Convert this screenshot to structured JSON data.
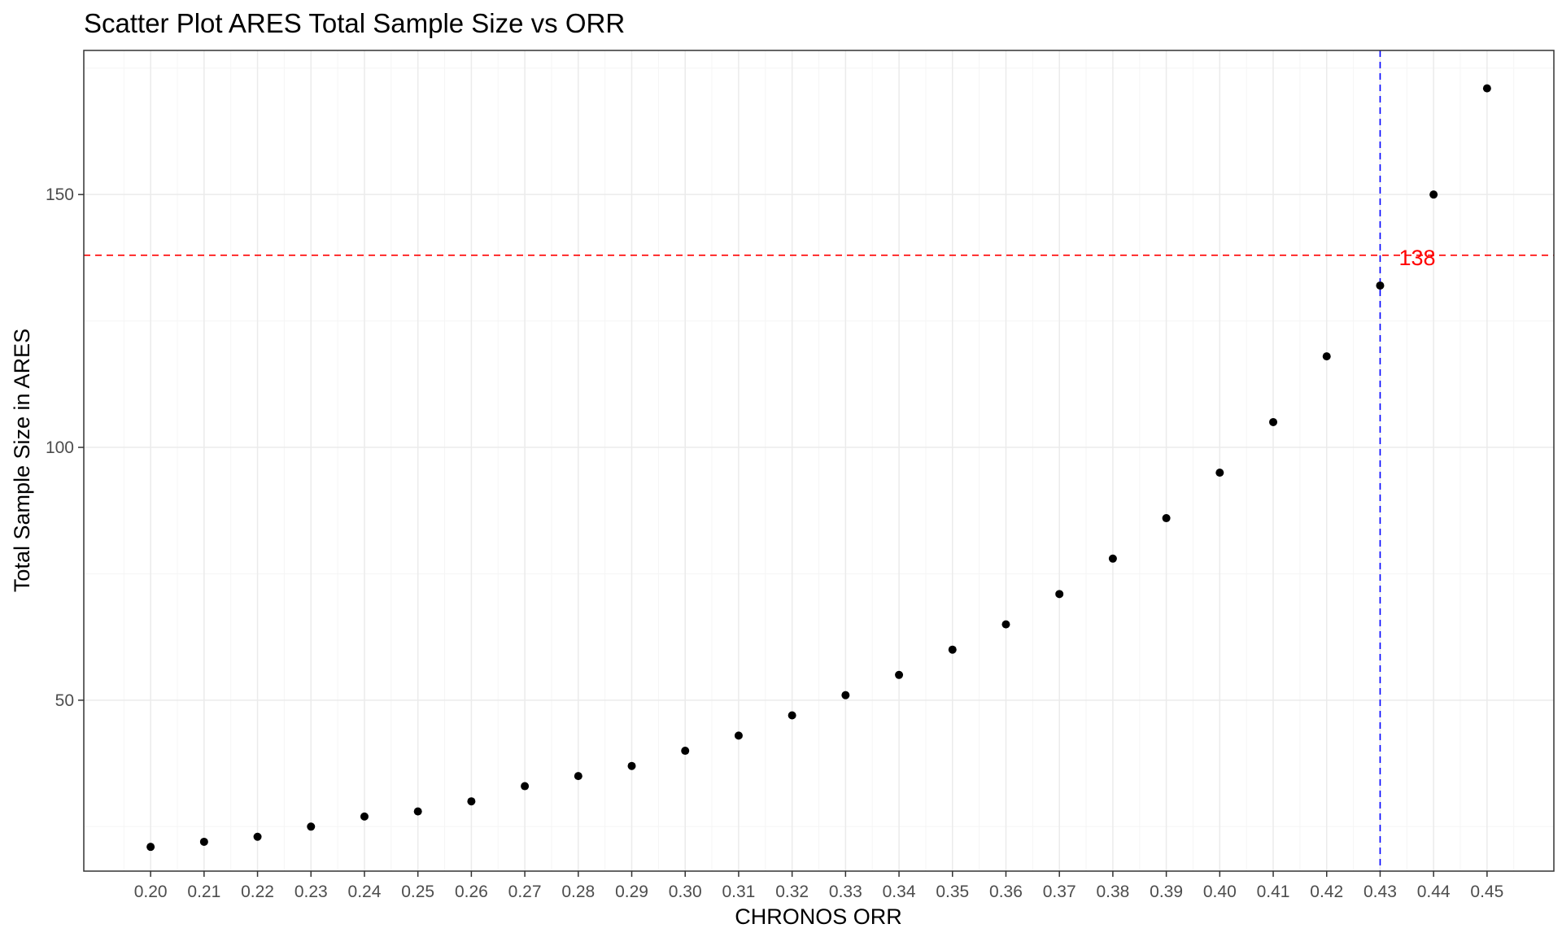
{
  "chart_data": {
    "type": "scatter",
    "title": "Scatter Plot ARES Total Sample Size vs ORR",
    "xlabel": "CHRONOS ORR",
    "ylabel": "Total Sample Size in ARES",
    "x_ticks": [
      "0.20",
      "0.21",
      "0.22",
      "0.23",
      "0.24",
      "0.25",
      "0.26",
      "0.27",
      "0.28",
      "0.29",
      "0.30",
      "0.31",
      "0.32",
      "0.33",
      "0.34",
      "0.35",
      "0.36",
      "0.37",
      "0.38",
      "0.39",
      "0.40",
      "0.41",
      "0.42",
      "0.43",
      "0.44",
      "0.45"
    ],
    "y_ticks": [
      50,
      100,
      150
    ],
    "xlim": [
      0.1875,
      0.4625
    ],
    "ylim": [
      16.2,
      178.5
    ],
    "grid": true,
    "points": [
      {
        "x": 0.2,
        "y": 21
      },
      {
        "x": 0.21,
        "y": 22
      },
      {
        "x": 0.22,
        "y": 23
      },
      {
        "x": 0.23,
        "y": 25
      },
      {
        "x": 0.24,
        "y": 27
      },
      {
        "x": 0.25,
        "y": 28
      },
      {
        "x": 0.26,
        "y": 30
      },
      {
        "x": 0.27,
        "y": 33
      },
      {
        "x": 0.28,
        "y": 35
      },
      {
        "x": 0.29,
        "y": 37
      },
      {
        "x": 0.3,
        "y": 40
      },
      {
        "x": 0.31,
        "y": 43
      },
      {
        "x": 0.32,
        "y": 47
      },
      {
        "x": 0.33,
        "y": 51
      },
      {
        "x": 0.34,
        "y": 55
      },
      {
        "x": 0.35,
        "y": 60
      },
      {
        "x": 0.36,
        "y": 65
      },
      {
        "x": 0.37,
        "y": 71
      },
      {
        "x": 0.38,
        "y": 78
      },
      {
        "x": 0.39,
        "y": 86
      },
      {
        "x": 0.4,
        "y": 95
      },
      {
        "x": 0.41,
        "y": 105
      },
      {
        "x": 0.42,
        "y": 118
      },
      {
        "x": 0.43,
        "y": 132
      },
      {
        "x": 0.44,
        "y": 150
      },
      {
        "x": 0.45,
        "y": 171
      }
    ],
    "hline": {
      "y": 138,
      "color": "#ff0000",
      "style": "dashed"
    },
    "vline": {
      "x": 0.43,
      "color": "#0000ff",
      "style": "dashed"
    },
    "annotation": {
      "text": "138",
      "x": 0.4335,
      "y": 138,
      "color": "#ff0000"
    },
    "colors": {
      "point": "#000000",
      "panel_border": "#333333",
      "grid_major": "#ebebeb",
      "grid_minor": "#f5f5f5",
      "tick_text": "#4d4d4d"
    }
  }
}
